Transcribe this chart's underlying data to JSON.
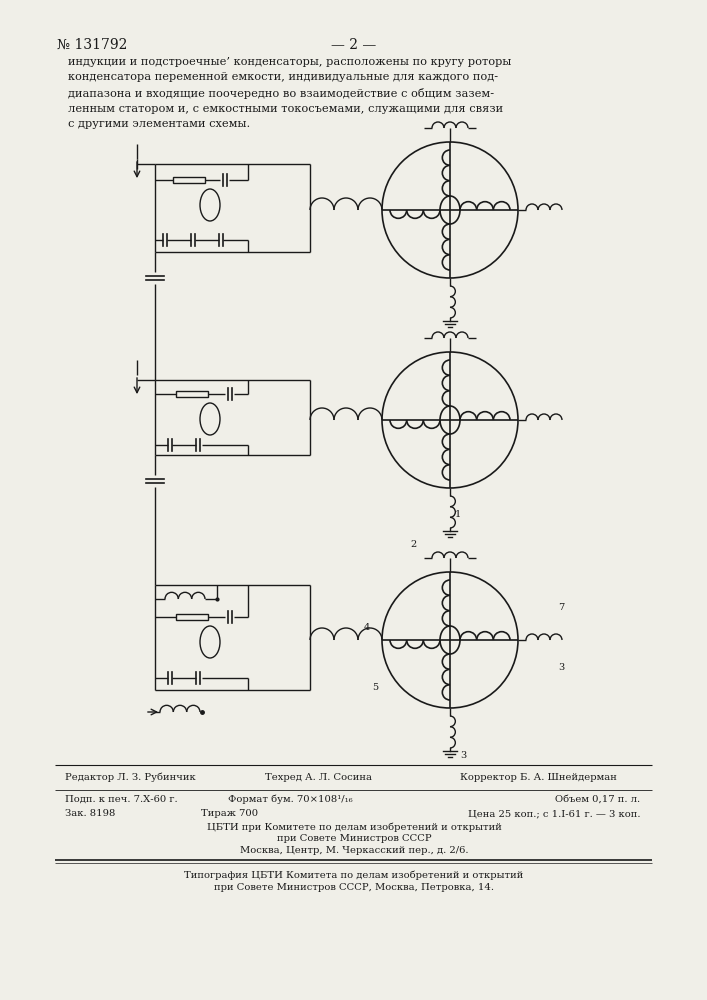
{
  "page_num_display": "№ 131792",
  "page_dash": "— 2 —",
  "body_lines": [
    "индукции и подстроечные’ конденсаторы, расположены по кругу роторы",
    "конденсатора переменной емкости, индивидуальные для каждого под-",
    "диапазона и входящие поочередно во взаимодействие с общим зазем-",
    "ленным статором и, с емкостными токосъемами, служащими для связи",
    "с другими элементами схемы."
  ],
  "footer_line1": "Редактор Л. З. Рубинчик",
  "footer_line1b": "Техред А. Л. Сосина",
  "footer_line1c": "Корректор Б. А. Шнейдерман",
  "footer_line2a": "Подп. к печ. 7.Х-60 г.",
  "footer_line2b": "Формат бум. 70×108¹/₁₆",
  "footer_line2c": "Объем 0,17 п. л.",
  "footer_line3a": "Зак. 8198",
  "footer_line3b": "Тираж 700",
  "footer_line3c": "Цена 25 коп.; с 1.I-61 г. — 3 коп.",
  "footer_line4": "ЦБТИ при Комитете по делам изобретений и открытий",
  "footer_line5": "при Совете Министров СССР",
  "footer_line6": "Москва, Центр, М. Черкасский пер., д. 2/6.",
  "footer_line7": "Типография ЦБТИ Комитета по делам изобретений и открытий",
  "footer_line8": "при Совете Министров СССР, Москва, Петровка, 14.",
  "bg_color": "#f0efe8",
  "text_color": "#1a1a1a"
}
